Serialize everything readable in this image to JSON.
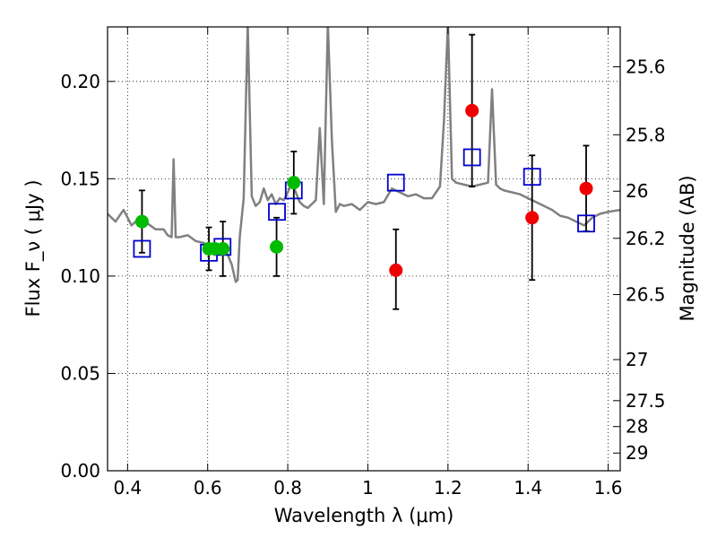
{
  "chart_data": {
    "type": "scatter",
    "xlabel": "Wavelength  λ (μm)",
    "ylabel": "Flux  F_ν  ( μJy )",
    "ylabel_right": "Magnitude (AB)",
    "xlim": [
      0.35,
      1.63
    ],
    "ylim": [
      0.0,
      0.228
    ],
    "grid": true,
    "x_ticks": [
      0.4,
      0.6,
      0.8,
      1.0,
      1.2,
      1.4,
      1.6
    ],
    "x_tick_labels": [
      "0.4",
      "0.6",
      "0.8",
      "1",
      "1.2",
      "1.4",
      "1.6"
    ],
    "y_ticks": [
      0.0,
      0.05,
      0.1,
      0.15,
      0.2
    ],
    "y_tick_labels": [
      "0.00",
      "0.05",
      "0.10",
      "0.15",
      "0.20"
    ],
    "right_axis_ticks": [
      {
        "label": "25.6",
        "flux": 0.2075
      },
      {
        "label": "25.8",
        "flux": 0.1726
      },
      {
        "label": "26",
        "flux": 0.1436
      },
      {
        "label": "26.2",
        "flux": 0.1194
      },
      {
        "label": "26.5",
        "flux": 0.0905
      },
      {
        "label": "27",
        "flux": 0.0571
      },
      {
        "label": "27.5",
        "flux": 0.036
      },
      {
        "label": "28",
        "flux": 0.0227
      },
      {
        "label": "29",
        "flux": 0.0091
      }
    ],
    "series": [
      {
        "kind": "line",
        "color": "#808080",
        "x": [
          0.35,
          0.37,
          0.39,
          0.41,
          0.43,
          0.45,
          0.47,
          0.49,
          0.5,
          0.51,
          0.515,
          0.52,
          0.53,
          0.55,
          0.57,
          0.59,
          0.61,
          0.63,
          0.65,
          0.66,
          0.67,
          0.675,
          0.68,
          0.69,
          0.7,
          0.71,
          0.72,
          0.73,
          0.74,
          0.75,
          0.76,
          0.77,
          0.78,
          0.79,
          0.8,
          0.81,
          0.82,
          0.83,
          0.84,
          0.85,
          0.86,
          0.87,
          0.88,
          0.89,
          0.9,
          0.91,
          0.92,
          0.93,
          0.94,
          0.96,
          0.98,
          1.0,
          1.02,
          1.04,
          1.06,
          1.08,
          1.1,
          1.12,
          1.14,
          1.16,
          1.18,
          1.19,
          1.2,
          1.21,
          1.22,
          1.24,
          1.26,
          1.28,
          1.3,
          1.31,
          1.32,
          1.33,
          1.34,
          1.36,
          1.38,
          1.4,
          1.42,
          1.44,
          1.46,
          1.48,
          1.5,
          1.52,
          1.54,
          1.56,
          1.58,
          1.6,
          1.63
        ],
        "y": [
          0.132,
          0.128,
          0.134,
          0.126,
          0.13,
          0.127,
          0.124,
          0.124,
          0.121,
          0.12,
          0.16,
          0.12,
          0.12,
          0.121,
          0.118,
          0.117,
          0.115,
          0.113,
          0.111,
          0.106,
          0.097,
          0.098,
          0.12,
          0.14,
          0.23,
          0.141,
          0.136,
          0.138,
          0.145,
          0.139,
          0.142,
          0.137,
          0.14,
          0.139,
          0.143,
          0.148,
          0.143,
          0.138,
          0.136,
          0.135,
          0.137,
          0.139,
          0.176,
          0.137,
          0.23,
          0.17,
          0.133,
          0.137,
          0.136,
          0.137,
          0.134,
          0.138,
          0.137,
          0.138,
          0.145,
          0.143,
          0.141,
          0.142,
          0.14,
          0.14,
          0.146,
          0.18,
          0.23,
          0.15,
          0.148,
          0.147,
          0.146,
          0.147,
          0.148,
          0.196,
          0.147,
          0.145,
          0.144,
          0.143,
          0.142,
          0.14,
          0.138,
          0.136,
          0.134,
          0.131,
          0.13,
          0.128,
          0.126,
          0.13,
          0.132,
          0.133,
          0.134
        ]
      },
      {
        "kind": "open-square",
        "color": "#0000cc",
        "x": [
          0.436,
          0.603,
          0.637,
          0.773,
          0.815,
          1.07,
          1.26,
          1.41,
          1.545
        ],
        "y": [
          0.114,
          0.112,
          0.115,
          0.133,
          0.144,
          0.148,
          0.161,
          0.151,
          0.127
        ]
      },
      {
        "kind": "filled-circle",
        "color": "#00bb00",
        "x": [
          0.436,
          0.603,
          0.618,
          0.638,
          0.772,
          0.815
        ],
        "y": [
          0.128,
          0.114,
          0.114,
          0.114,
          0.115,
          0.148
        ],
        "err_low": [
          0.016,
          0.011,
          0.0,
          0.014,
          0.015,
          0.016
        ],
        "err_high": [
          0.016,
          0.011,
          0.0,
          0.014,
          0.015,
          0.016
        ]
      },
      {
        "kind": "filled-circle",
        "color": "#ee0000",
        "x": [
          1.07,
          1.26,
          1.41,
          1.545
        ],
        "y": [
          0.103,
          0.185,
          0.13,
          0.145
        ],
        "err_low": [
          0.02,
          0.039,
          0.032,
          0.022
        ],
        "err_high": [
          0.021,
          0.039,
          0.032,
          0.022
        ]
      }
    ]
  }
}
